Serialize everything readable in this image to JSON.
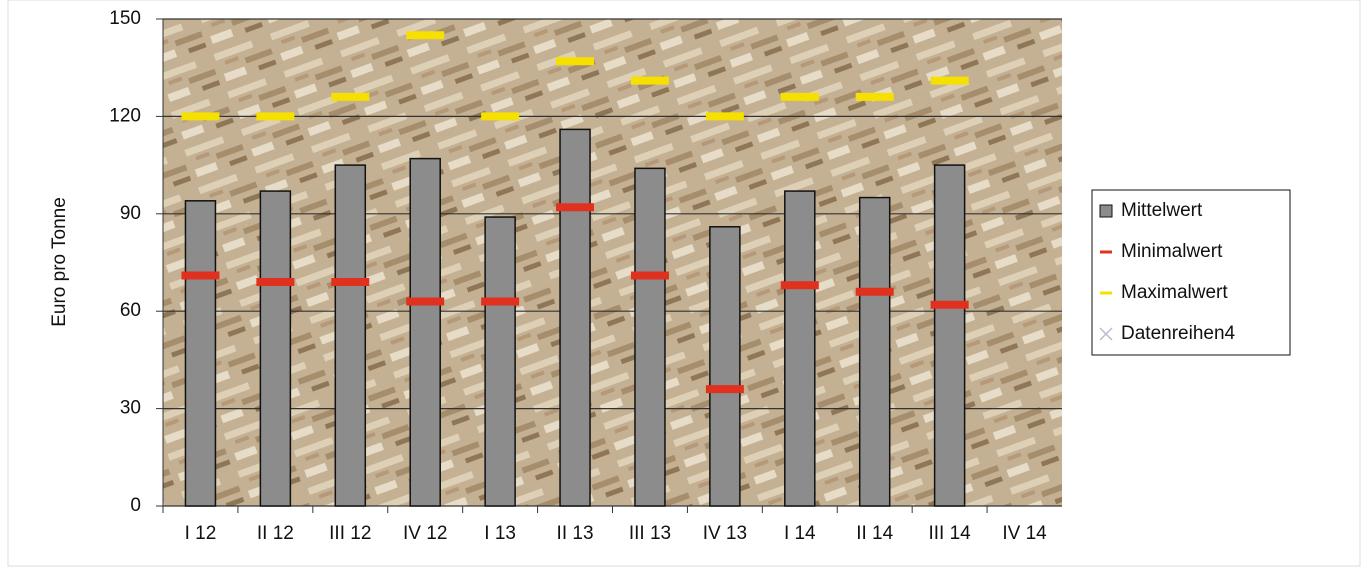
{
  "chart_data": {
    "type": "bar",
    "y_label": "Euro pro Tonne",
    "categories": [
      "I 12",
      "II 12",
      "III 12",
      "IV 12",
      "I 13",
      "II 13",
      "III 13",
      "IV 13",
      "I 14",
      "II 14",
      "III 14",
      "IV 14"
    ],
    "series": [
      {
        "name": "Mittelwert",
        "type": "bar",
        "color": "#8c8c8c",
        "values": [
          94,
          97,
          105,
          107,
          89,
          116,
          104,
          86,
          97,
          95,
          105,
          null
        ]
      },
      {
        "name": "Minimalwert",
        "type": "dash",
        "color": "#e0301e",
        "values": [
          71,
          69,
          69,
          63,
          63,
          92,
          71,
          36,
          68,
          66,
          62,
          null
        ]
      },
      {
        "name": "Maximalwert",
        "type": "dash",
        "color": "#f5e000",
        "values": [
          120,
          120,
          126,
          145,
          120,
          137,
          131,
          120,
          126,
          126,
          131,
          null
        ]
      },
      {
        "name": "Datenreihen4",
        "type": "x",
        "color": "#b8bccc",
        "values": [
          null,
          null,
          null,
          null,
          null,
          null,
          null,
          null,
          null,
          null,
          null,
          null
        ]
      }
    ],
    "ylim": [
      0,
      150
    ],
    "yticks": [
      0,
      30,
      60,
      90,
      120,
      150
    ],
    "grid": true,
    "legend": "right"
  }
}
